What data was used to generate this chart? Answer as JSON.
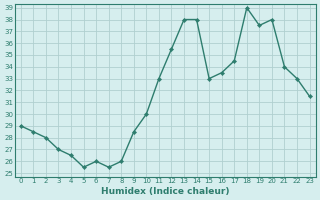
{
  "x": [
    0,
    1,
    2,
    3,
    4,
    5,
    6,
    7,
    8,
    9,
    10,
    11,
    12,
    13,
    14,
    15,
    16,
    17,
    18,
    19,
    20,
    21,
    22,
    23
  ],
  "y": [
    29,
    28.5,
    28,
    27,
    26.5,
    25.5,
    26,
    25.5,
    26,
    28.5,
    30,
    33,
    35.5,
    38,
    38,
    33,
    33.5,
    34.5,
    39,
    37.5,
    38,
    34,
    33,
    31.5
  ],
  "xlabel": "Humidex (Indice chaleur)",
  "line_color": "#2e7d6e",
  "bg_color": "#d6eeee",
  "grid_color": "#b0d0d0",
  "ylim": [
    25,
    39
  ],
  "xlim": [
    -0.5,
    23.5
  ],
  "yticks": [
    25,
    26,
    27,
    28,
    29,
    30,
    31,
    32,
    33,
    34,
    35,
    36,
    37,
    38,
    39
  ],
  "xticks": [
    0,
    1,
    2,
    3,
    4,
    5,
    6,
    7,
    8,
    9,
    10,
    11,
    12,
    13,
    14,
    15,
    16,
    17,
    18,
    19,
    20,
    21,
    22,
    23
  ]
}
